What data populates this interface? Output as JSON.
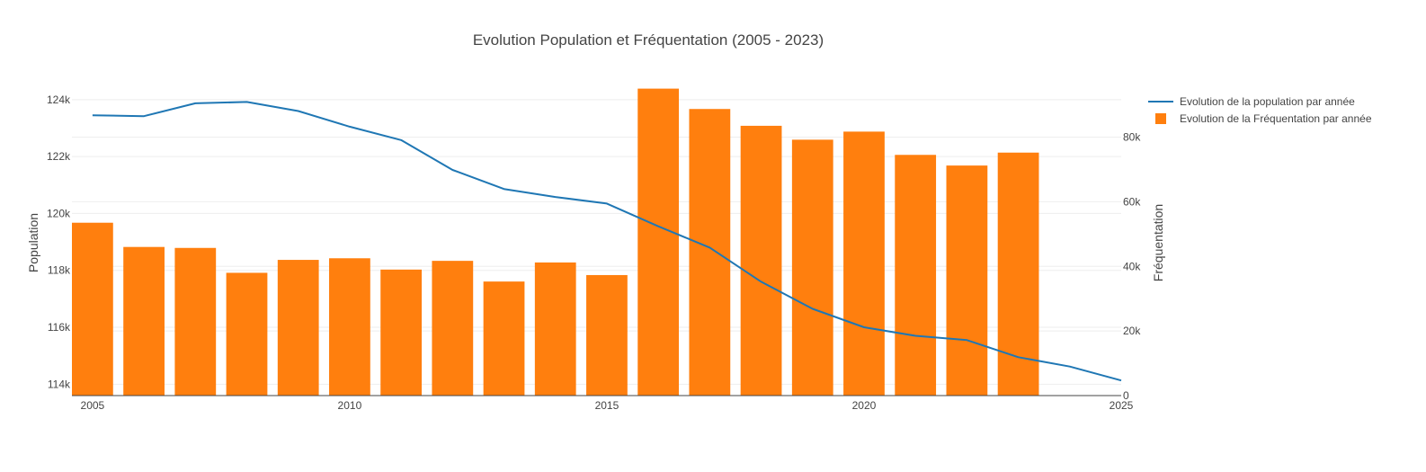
{
  "chart_data": {
    "type": "bar+line",
    "title": "Evolution Population et Fréquentation (2005 - 2023)",
    "x_ticks": [
      "2005",
      "2010",
      "2015",
      "2020",
      "2025"
    ],
    "xlim": [
      2004.6,
      2025
    ],
    "y_left": {
      "label": "Population",
      "ticks": [
        "114k",
        "116k",
        "118k",
        "120k",
        "122k",
        "124k"
      ],
      "tick_values": [
        114000,
        116000,
        118000,
        120000,
        122000,
        124000
      ],
      "range": [
        113600,
        124500
      ]
    },
    "y_right": {
      "label": "Fréquentation",
      "ticks": [
        "0",
        "20k",
        "40k",
        "60k",
        "80k"
      ],
      "tick_values": [
        0,
        20000,
        40000,
        60000,
        80000
      ],
      "range": [
        0,
        96000
      ]
    },
    "series": [
      {
        "name": "Evolution de la population par année",
        "kind": "line",
        "axis": "left",
        "color": "#1f77b4",
        "x": [
          2005,
          2006,
          2007,
          2008,
          2009,
          2010,
          2011,
          2012,
          2013,
          2014,
          2015,
          2016,
          2017,
          2018,
          2019,
          2020,
          2021,
          2022,
          2023,
          2024,
          2025
        ],
        "values": [
          123450,
          123420,
          123870,
          123920,
          123600,
          123050,
          122580,
          121530,
          120860,
          120580,
          120350,
          119550,
          118800,
          117600,
          116650,
          116000,
          115700,
          115550,
          114950,
          114620,
          114130
        ]
      },
      {
        "name": "Evolution de la Fréquentation par année",
        "kind": "bar",
        "axis": "right",
        "color": "#ff7f0e",
        "x": [
          2005,
          2006,
          2007,
          2008,
          2009,
          2010,
          2011,
          2012,
          2013,
          2014,
          2015,
          2016,
          2017,
          2018,
          2019,
          2020,
          2021,
          2022,
          2023
        ],
        "values": [
          53500,
          46000,
          45700,
          38000,
          42000,
          42500,
          39000,
          41700,
          35300,
          41200,
          37300,
          95000,
          88700,
          83500,
          79200,
          81700,
          74500,
          71200,
          75200
        ]
      }
    ],
    "legend": "top-right",
    "grid": true
  }
}
